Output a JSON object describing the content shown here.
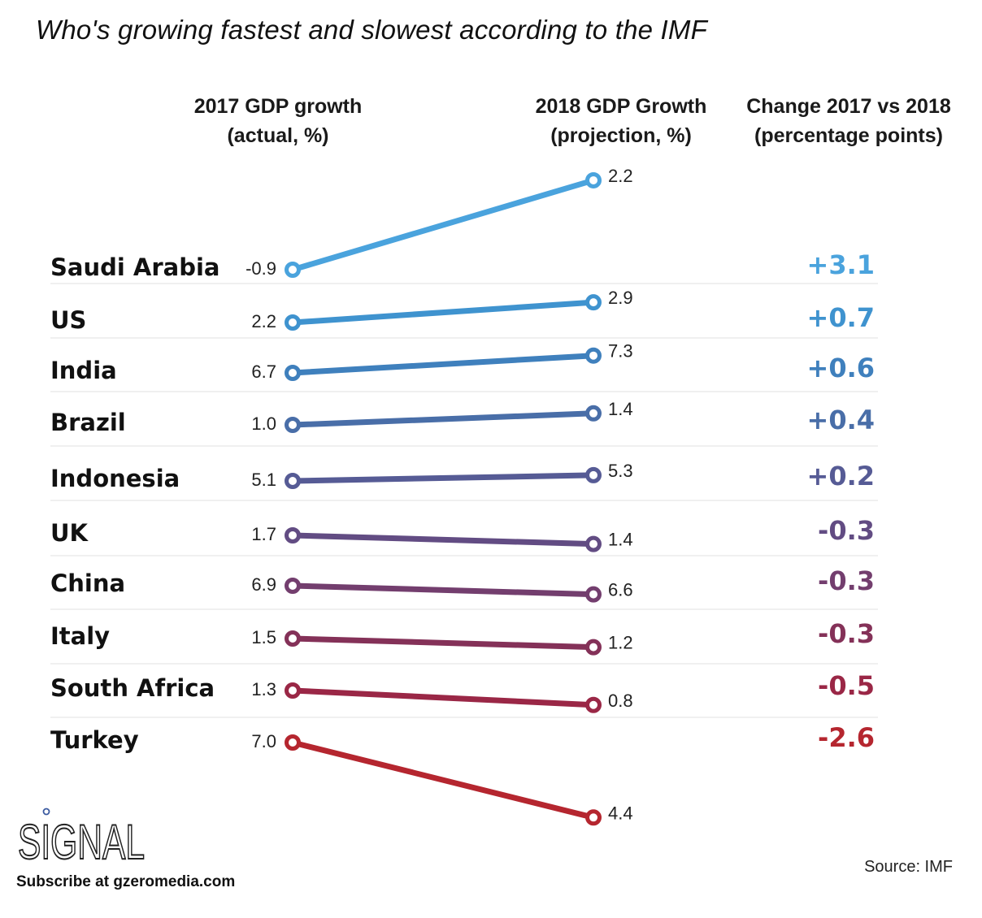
{
  "chart_data": {
    "type": "line",
    "subtype": "slope",
    "title": "Who's growing fastest and slowest according to the IMF",
    "columns": {
      "y2017": [
        "2017 GDP growth",
        "(actual, %)"
      ],
      "y2018": [
        "2018 GDP Growth",
        "(projection, %)"
      ],
      "change": [
        "Change 2017 vs 2018",
        "(percentage points)"
      ]
    },
    "series": [
      {
        "name": "Saudi Arabia",
        "gdp_2017": -0.9,
        "gdp_2018": 2.2,
        "change": "+3.1",
        "color": "#4aa3dd"
      },
      {
        "name": "US",
        "gdp_2017": 2.2,
        "gdp_2018": 2.9,
        "change": "+0.7",
        "color": "#3f93cf"
      },
      {
        "name": "India",
        "gdp_2017": 6.7,
        "gdp_2018": 7.3,
        "change": "+0.6",
        "color": "#3f80bd"
      },
      {
        "name": "Brazil",
        "gdp_2017": 1.0,
        "gdp_2018": 1.4,
        "change": "+0.4",
        "color": "#496ea8"
      },
      {
        "name": "Indonesia",
        "gdp_2017": 5.1,
        "gdp_2018": 5.3,
        "change": "+0.2",
        "color": "#565b95"
      },
      {
        "name": "UK",
        "gdp_2017": 1.7,
        "gdp_2018": 1.4,
        "change": "-0.3",
        "color": "#624c83"
      },
      {
        "name": "China",
        "gdp_2017": 6.9,
        "gdp_2018": 6.6,
        "change": "-0.3",
        "color": "#733e6e"
      },
      {
        "name": "Italy",
        "gdp_2017": 1.5,
        "gdp_2018": 1.2,
        "change": "-0.3",
        "color": "#843158"
      },
      {
        "name": "South Africa",
        "gdp_2017": 1.3,
        "gdp_2018": 0.8,
        "change": "-0.5",
        "color": "#9a2746"
      },
      {
        "name": "Turkey",
        "gdp_2017": 7.0,
        "gdp_2018": 4.4,
        "change": "-2.6",
        "color": "#b5262f"
      }
    ],
    "labels_2017": [
      "-0.9",
      "2.2",
      "6.7",
      "1.0",
      "5.1",
      "1.7",
      "6.9",
      "1.5",
      "1.3",
      "7.0"
    ],
    "labels_2018": [
      "2.2",
      "2.9",
      "7.3",
      "1.4",
      "5.3",
      "1.4",
      "6.6",
      "1.2",
      "0.8",
      "4.4"
    ]
  },
  "footer": {
    "logo": "SIGNAL",
    "subscribe": "Subscribe at gzeromedia.com",
    "source": "Source: IMF"
  }
}
